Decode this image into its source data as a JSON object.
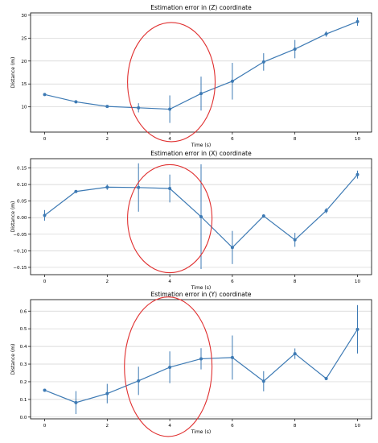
{
  "colors": {
    "series": "#3d7ab4",
    "ellipse": "#e03030",
    "grid": "#d0d0d0"
  },
  "chart_data": [
    {
      "type": "line",
      "title": "Estimation error in (Z) coordinate",
      "xlabel": "Time (s)",
      "ylabel": "Distance (m)",
      "xlim": [
        -0.45,
        10.45
      ],
      "ylim": [
        4.5,
        30.5
      ],
      "xticks": [
        0,
        2,
        4,
        6,
        8,
        10
      ],
      "yticks": [
        10,
        15,
        20,
        25,
        30
      ],
      "ytick_labels": [
        "10",
        "15",
        "20",
        "25",
        "30"
      ],
      "grid": "y-only",
      "series": [
        {
          "x": [
            0,
            1,
            2,
            3,
            4,
            5,
            6,
            7,
            8,
            9,
            10
          ],
          "y": [
            12.7,
            11.1,
            10.1,
            9.8,
            9.5,
            12.9,
            15.6,
            19.8,
            22.6,
            25.9,
            28.6
          ],
          "err": [
            0.2,
            0.2,
            0.2,
            1.0,
            3.0,
            3.7,
            4.0,
            1.9,
            2.0,
            0.6,
            0.9
          ]
        }
      ],
      "annotation": {
        "type": "ellipse",
        "cx": 4.05,
        "cy": 15.4,
        "rx": 1.4,
        "ry": 13.0
      }
    },
    {
      "type": "line",
      "title": "Estimation error in (X) coordinate",
      "xlabel": "Time (s)",
      "ylabel": "Distance (m)",
      "xlim": [
        -0.45,
        10.45
      ],
      "ylim": [
        -0.172,
        0.178
      ],
      "xticks": [
        0,
        2,
        4,
        6,
        8,
        10
      ],
      "yticks": [
        -0.15,
        -0.1,
        -0.05,
        0.0,
        0.05,
        0.1,
        0.15
      ],
      "ytick_labels": [
        "−0.15",
        "−0.10",
        "−0.05",
        "0.00",
        "0.05",
        "0.10",
        "0.15"
      ],
      "grid": "y-only",
      "series": [
        {
          "x": [
            0,
            1,
            2,
            3,
            4,
            5,
            6,
            7,
            8,
            9,
            10
          ],
          "y": [
            0.007,
            0.079,
            0.092,
            0.091,
            0.088,
            0.003,
            -0.09,
            0.005,
            -0.067,
            0.021,
            0.13
          ],
          "err": [
            0.016,
            0.003,
            0.008,
            0.073,
            0.042,
            0.158,
            0.05,
            0.005,
            0.021,
            0.008,
            0.012
          ]
        }
      ],
      "annotation": {
        "type": "ellipse",
        "cx": 4.0,
        "cy": -0.003,
        "rx": 1.35,
        "ry": 0.163
      }
    },
    {
      "type": "line",
      "title": "Estimation error in (Y) coordinate",
      "xlabel": "Time (s)",
      "ylabel": "Distance (m)",
      "xlim": [
        -0.45,
        10.45
      ],
      "ylim": [
        -0.01,
        0.665
      ],
      "xticks": [
        0,
        2,
        4,
        6,
        8,
        10
      ],
      "yticks": [
        0.0,
        0.1,
        0.2,
        0.3,
        0.4,
        0.5,
        0.6
      ],
      "ytick_labels": [
        "0.0",
        "0.1",
        "0.2",
        "0.3",
        "0.4",
        "0.5",
        "0.6"
      ],
      "grid": "y-only",
      "series": [
        {
          "x": [
            0,
            1,
            2,
            3,
            4,
            5,
            6,
            7,
            8,
            9,
            10
          ],
          "y": [
            0.152,
            0.082,
            0.133,
            0.205,
            0.282,
            0.33,
            0.337,
            0.203,
            0.359,
            0.218,
            0.497
          ],
          "err": [
            0.003,
            0.065,
            0.055,
            0.08,
            0.09,
            0.06,
            0.125,
            0.057,
            0.03,
            0.005,
            0.137
          ]
        }
      ],
      "annotation": {
        "type": "ellipse",
        "cx": 3.95,
        "cy": 0.285,
        "rx": 1.4,
        "ry": 0.395
      }
    }
  ]
}
